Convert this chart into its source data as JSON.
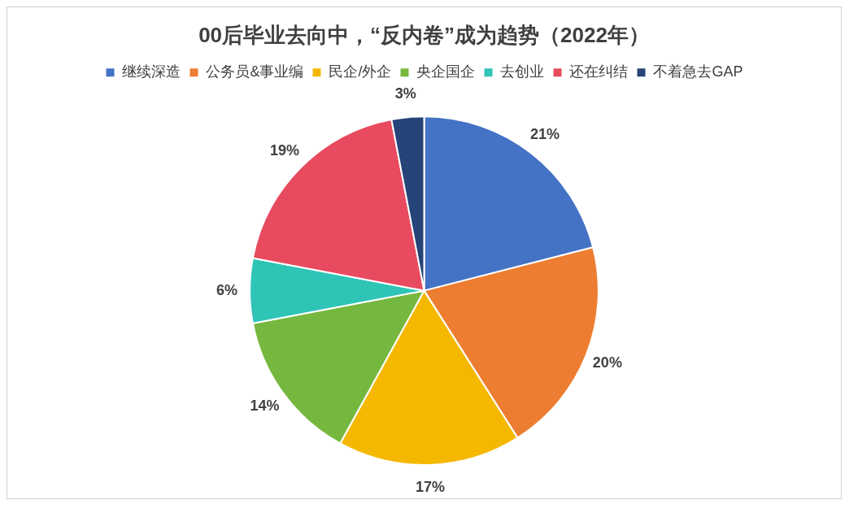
{
  "chart_data": {
    "type": "pie",
    "title": "00后毕业去向中，“反内卷”成为趋势（2022年）",
    "categories": [
      "继续深造",
      "公务员&事业编",
      "民企/外企",
      "央企国企",
      "去创业",
      "还在纠结",
      "不着急去GAP"
    ],
    "values": [
      21,
      20,
      17,
      14,
      6,
      19,
      3
    ],
    "value_labels": [
      "21%",
      "20%",
      "17%",
      "14%",
      "6%",
      "19%",
      "3%"
    ],
    "colors": [
      "#4472c4",
      "#ed7d31",
      "#f5b800",
      "#76b83f",
      "#2ec4b6",
      "#e84a5f",
      "#264478"
    ],
    "legend": "top"
  }
}
